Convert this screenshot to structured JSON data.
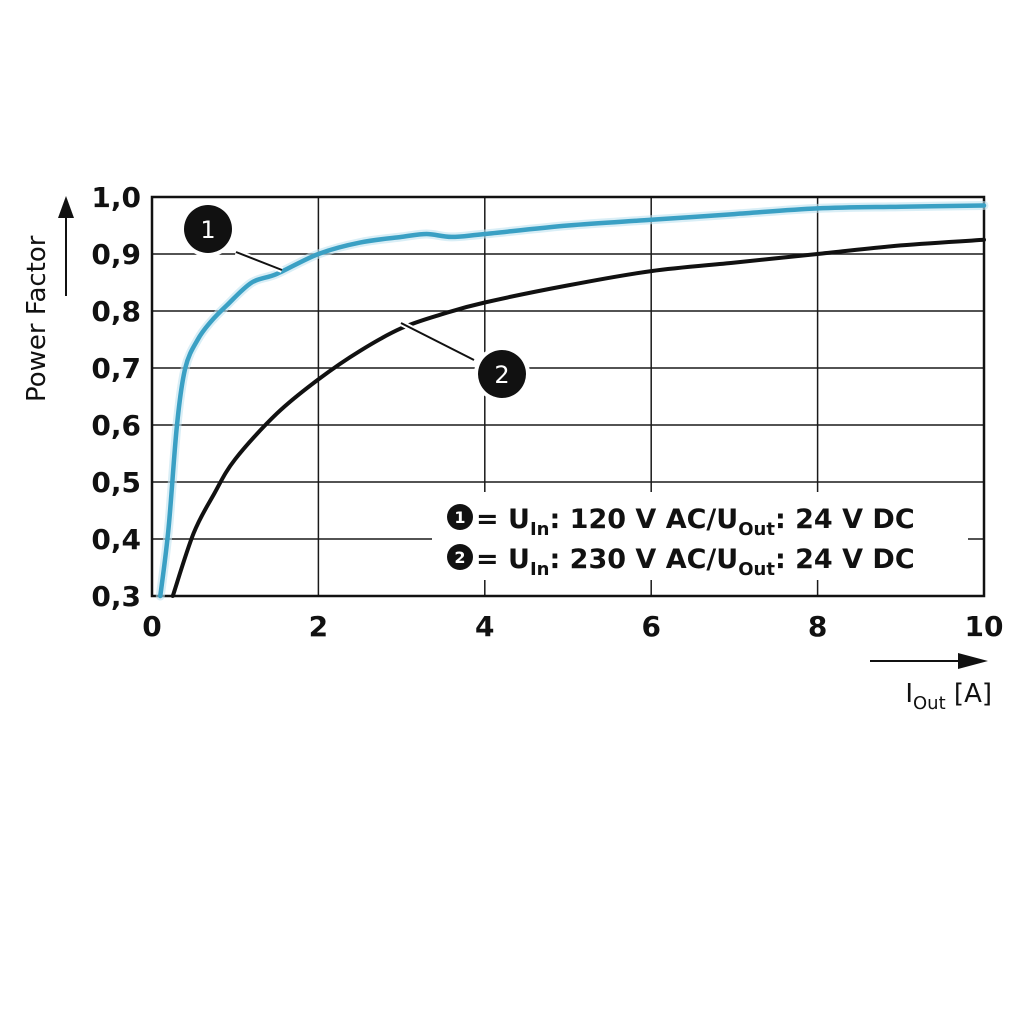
{
  "chart_data": {
    "type": "line",
    "title": "",
    "xlabel": {
      "main": "I",
      "sub": "Out",
      "unit": " [A]"
    },
    "ylabel": "Power Factor",
    "xlim": [
      0,
      10
    ],
    "ylim": [
      0.3,
      1.0
    ],
    "x_ticks": [
      {
        "value": 0,
        "label": "0"
      },
      {
        "value": 2,
        "label": "2"
      },
      {
        "value": 4,
        "label": "4"
      },
      {
        "value": 6,
        "label": "6"
      },
      {
        "value": 8,
        "label": "8"
      },
      {
        "value": 10,
        "label": "10"
      }
    ],
    "y_ticks": [
      {
        "value": 0.3,
        "label": "0,3"
      },
      {
        "value": 0.4,
        "label": "0,4"
      },
      {
        "value": 0.5,
        "label": "0,5"
      },
      {
        "value": 0.6,
        "label": "0,6"
      },
      {
        "value": 0.7,
        "label": "0,7"
      },
      {
        "value": 0.8,
        "label": "0,8"
      },
      {
        "value": 0.9,
        "label": "0,9"
      },
      {
        "value": 1.0,
        "label": "1,0"
      }
    ],
    "grid": true,
    "legend_position": "bottom-right",
    "series": [
      {
        "badge": "1",
        "color": "#3aa0c4",
        "legend": {
          "prefix": " = U",
          "sub1": "In",
          "middle": ": 120 V AC/U",
          "sub2": "Out",
          "suffix": ": 24 V DC"
        },
        "points": [
          [
            0.1,
            0.3
          ],
          [
            0.2,
            0.42
          ],
          [
            0.3,
            0.6
          ],
          [
            0.4,
            0.7
          ],
          [
            0.55,
            0.75
          ],
          [
            0.7,
            0.78
          ],
          [
            0.9,
            0.81
          ],
          [
            1.2,
            0.85
          ],
          [
            1.5,
            0.865
          ],
          [
            2.0,
            0.9
          ],
          [
            2.5,
            0.92
          ],
          [
            3.0,
            0.93
          ],
          [
            3.3,
            0.935
          ],
          [
            3.6,
            0.93
          ],
          [
            4.0,
            0.935
          ],
          [
            5.0,
            0.95
          ],
          [
            6.0,
            0.96
          ],
          [
            7.0,
            0.97
          ],
          [
            8.0,
            0.98
          ],
          [
            9.0,
            0.983
          ],
          [
            10.0,
            0.985
          ]
        ]
      },
      {
        "badge": "2",
        "color": "#111111",
        "legend": {
          "prefix": " = U",
          "sub1": "In",
          "middle": ": 230 V AC/U",
          "sub2": "Out",
          "suffix": ": 24 V DC"
        },
        "points": [
          [
            0.25,
            0.3
          ],
          [
            0.5,
            0.41
          ],
          [
            0.75,
            0.48
          ],
          [
            1.0,
            0.54
          ],
          [
            1.5,
            0.62
          ],
          [
            2.0,
            0.68
          ],
          [
            2.5,
            0.73
          ],
          [
            3.0,
            0.77
          ],
          [
            3.5,
            0.795
          ],
          [
            4.0,
            0.815
          ],
          [
            5.0,
            0.845
          ],
          [
            6.0,
            0.87
          ],
          [
            7.0,
            0.885
          ],
          [
            8.0,
            0.9
          ],
          [
            9.0,
            0.915
          ],
          [
            10.0,
            0.925
          ]
        ]
      }
    ],
    "callouts": [
      {
        "label": "1",
        "series": 0
      },
      {
        "label": "2",
        "series": 1
      }
    ]
  }
}
